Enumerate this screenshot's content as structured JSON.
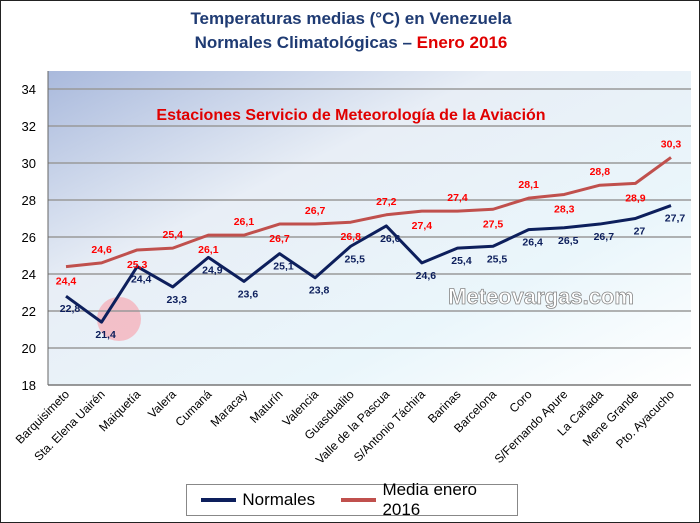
{
  "title_line1": "Temperaturas medias (°C) en Venezuela",
  "title_line2_prefix": "Normales Climatológicas – ",
  "title_line2_highlight": "Enero 2016",
  "subtitle": "Estaciones Servicio de Meteorología de la Aviación",
  "watermark": "Meteovargas.com",
  "colors": {
    "normales": "#0d1f5c",
    "media": "#c0504d",
    "media_labels": "#ff0000",
    "subtitle": "#e00000"
  },
  "chart_data": {
    "type": "line",
    "title": "Temperaturas medias (°C) en Venezuela — Normales Climatológicas – Enero 2016",
    "categories": [
      "Barquisimeto",
      "Sta. Elena Uairén",
      "Maiquetía",
      "Valera",
      "Cumaná",
      "Maracay",
      "Maturín",
      "Valencia",
      "Guasdualito",
      "Valle de la Pascua",
      "S/Antonio Táchira",
      "Barinas",
      "Barcelona",
      "Coro",
      "S/Fernando Apure",
      "La Cañada",
      "Mene Grande",
      "Pto. Ayacucho"
    ],
    "ylim": [
      18,
      34
    ],
    "yticks": [
      18,
      20,
      22,
      24,
      26,
      28,
      30,
      32,
      34
    ],
    "grid": true,
    "legend": "bottom",
    "series": [
      {
        "name": "Normales",
        "values": [
          22.8,
          21.4,
          24.4,
          23.3,
          24.9,
          23.6,
          25.1,
          23.8,
          25.5,
          26.6,
          24.6,
          25.4,
          25.5,
          26.4,
          26.5,
          26.7,
          27,
          27.7
        ]
      },
      {
        "name": "Media enero 2016",
        "values": [
          24.4,
          24.6,
          25.3,
          25.4,
          26.1,
          26.1,
          26.7,
          26.7,
          26.8,
          27.2,
          27.4,
          27.4,
          27.5,
          28.1,
          28.3,
          28.8,
          28.9,
          30.3
        ]
      }
    ]
  }
}
